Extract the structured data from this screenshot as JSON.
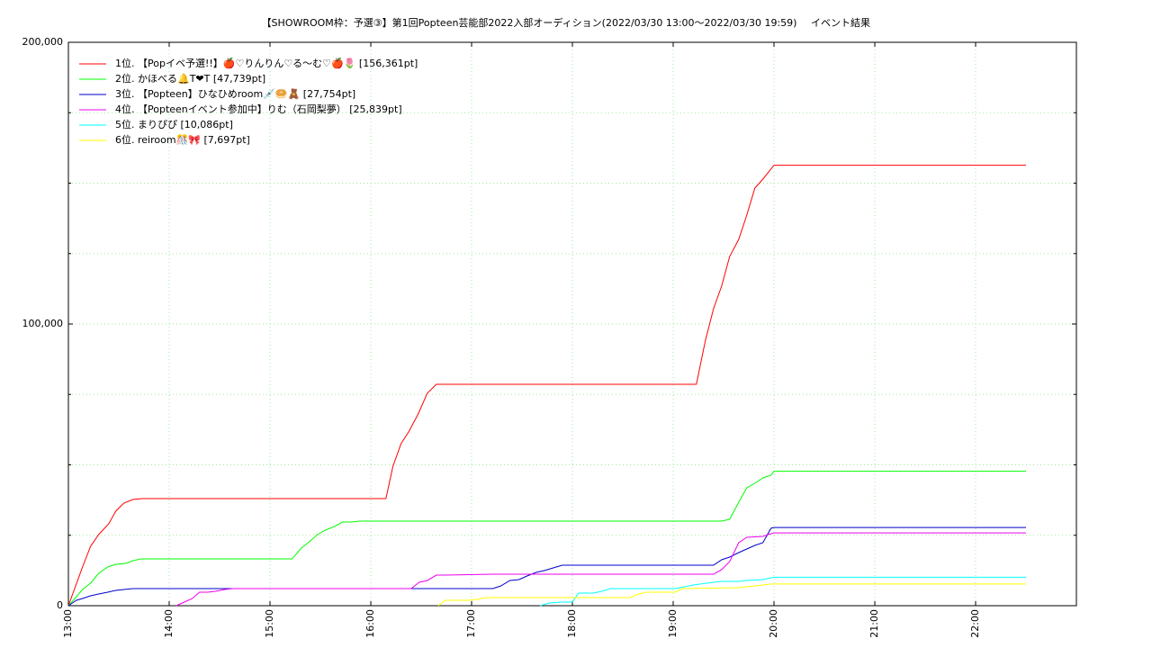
{
  "chart_data": {
    "type": "line",
    "title": "【SHOWROOM枠：予選③】第1回Popteen芸能部2022入部オーディション(2022/03/30 13:00〜2022/03/30 19:59)",
    "subtitle": "イベント結果",
    "xlim": [
      13,
      23
    ],
    "xticks": [
      {
        "value": 13,
        "label": "13:00"
      },
      {
        "value": 14,
        "label": "14:00"
      },
      {
        "value": 15,
        "label": "15:00"
      },
      {
        "value": 16,
        "label": "16:00"
      },
      {
        "value": 17,
        "label": "17:00"
      },
      {
        "value": 18,
        "label": "18:00"
      },
      {
        "value": 19,
        "label": "19:00"
      },
      {
        "value": 20,
        "label": "20:00"
      },
      {
        "value": 21,
        "label": "21:00"
      },
      {
        "value": 22,
        "label": "22:00"
      }
    ],
    "ylim": [
      0,
      200000
    ],
    "yticks": [
      0,
      {
        "value": 100000,
        "label": "100,000"
      },
      {
        "value": 200000,
        "label": "200,000"
      }
    ],
    "y_minor_ticks": [
      25000,
      50000,
      75000,
      125000,
      150000,
      175000
    ],
    "grid": true,
    "legend": "upper left",
    "series": [
      {
        "name": "1位. 【Popイベ予選!!】🍎♡りんりん♡る〜む♡🍎🌷 [156,361pt]",
        "color": "#ff0000",
        "x": [
          13,
          13.14,
          13.22,
          13.3,
          13.4,
          13.47,
          13.55,
          13.64,
          13.73,
          16.15,
          16.22,
          16.3,
          16.38,
          16.47,
          16.56,
          16.65,
          19.23,
          19.32,
          19.4,
          19.48,
          19.56,
          19.65,
          19.73,
          19.81,
          19.89,
          20,
          22.5
        ],
        "values": [
          0,
          13740,
          21090,
          25240,
          29070,
          33550,
          36420,
          37700,
          38020,
          38020,
          49520,
          57510,
          61980,
          68050,
          75400,
          78590,
          78590,
          94250,
          105430,
          113420,
          123960,
          130030,
          138660,
          148240,
          151440,
          156361,
          156361
        ]
      },
      {
        "name": "2位. かほべる🔔T❤T [47,739pt]",
        "color": "#00ff00",
        "x": [
          13,
          13.08,
          13.14,
          13.22,
          13.3,
          13.39,
          13.47,
          13.57,
          13.64,
          13.72,
          15.22,
          15.31,
          15.39,
          15.47,
          15.55,
          15.64,
          15.72,
          15.81,
          15.89,
          19.48,
          19.56,
          19.65,
          19.73,
          19.81,
          19.89,
          19.97,
          20,
          22.5
        ],
        "values": [
          0,
          3190,
          5750,
          7990,
          11500,
          13740,
          14700,
          15020,
          15970,
          16610,
          16610,
          20450,
          22680,
          25240,
          26840,
          28120,
          29710,
          29710,
          30030,
          30030,
          30670,
          36740,
          41850,
          43450,
          45370,
          46330,
          47739,
          47739
        ]
      },
      {
        "name": "3位. 【Popteen】ひなひめroom💉🥯🧸 [27,754pt]",
        "color": "#0000cc",
        "x": [
          13,
          13.08,
          13.14,
          13.22,
          13.3,
          13.39,
          13.47,
          13.55,
          13.64,
          13.72,
          17.21,
          17.29,
          17.38,
          17.47,
          17.55,
          17.64,
          17.72,
          17.81,
          17.9,
          19.4,
          19.48,
          19.56,
          19.65,
          19.73,
          19.81,
          19.89,
          19.97,
          20,
          22.5
        ],
        "values": [
          0,
          1920,
          2560,
          3510,
          4150,
          4790,
          5430,
          5750,
          6070,
          6070,
          6070,
          7030,
          8950,
          9270,
          10540,
          11820,
          12460,
          13420,
          14380,
          14380,
          16290,
          17250,
          18850,
          20130,
          21410,
          22360,
          27480,
          27754,
          27754
        ]
      },
      {
        "name": "4位. 【Popteenイベント参加中】りむ（石岡梨夢） [25,839pt]",
        "color": "#ee00ee",
        "x": [
          14.07,
          14.15,
          14.23,
          14.3,
          14.38,
          14.46,
          14.55,
          14.63,
          16.4,
          16.48,
          16.56,
          16.65,
          16.73,
          17.21,
          19.4,
          19.48,
          19.56,
          19.65,
          19.73,
          19.89,
          19.97,
          20,
          22.5
        ],
        "values": [
          0,
          1280,
          2560,
          4790,
          4790,
          5110,
          5750,
          6070,
          6070,
          8310,
          8950,
          10860,
          10860,
          11180,
          11180,
          12780,
          15650,
          22360,
          24280,
          24600,
          25560,
          25839,
          25839
        ]
      },
      {
        "name": "5位. まりぴぴ [10,086pt]",
        "color": "#00ffff",
        "x": [
          17.68,
          17.77,
          17.9,
          18,
          18.06,
          18.21,
          18.29,
          18.38,
          19.02,
          19.11,
          19.2,
          19.4,
          19.48,
          19.65,
          19.73,
          19.89,
          19.97,
          20,
          22.5
        ],
        "values": [
          0,
          960,
          1280,
          1280,
          4470,
          4470,
          5110,
          6070,
          6070,
          6710,
          7350,
          8310,
          8630,
          8630,
          8950,
          9270,
          9900,
          10086,
          10086
        ]
      },
      {
        "name": "6位. reiroom🎊🎀 [7,697pt]",
        "color": "#ffff00",
        "x": [
          16.67,
          16.74,
          16.96,
          17.05,
          17.14,
          18.57,
          18.66,
          18.73,
          19.02,
          19.09,
          19.64,
          19.81,
          19.97,
          20,
          22.5
        ],
        "values": [
          0,
          1920,
          1920,
          2240,
          2880,
          2880,
          4150,
          4790,
          4790,
          6070,
          6390,
          7030,
          7670,
          7697,
          7697
        ]
      }
    ]
  }
}
